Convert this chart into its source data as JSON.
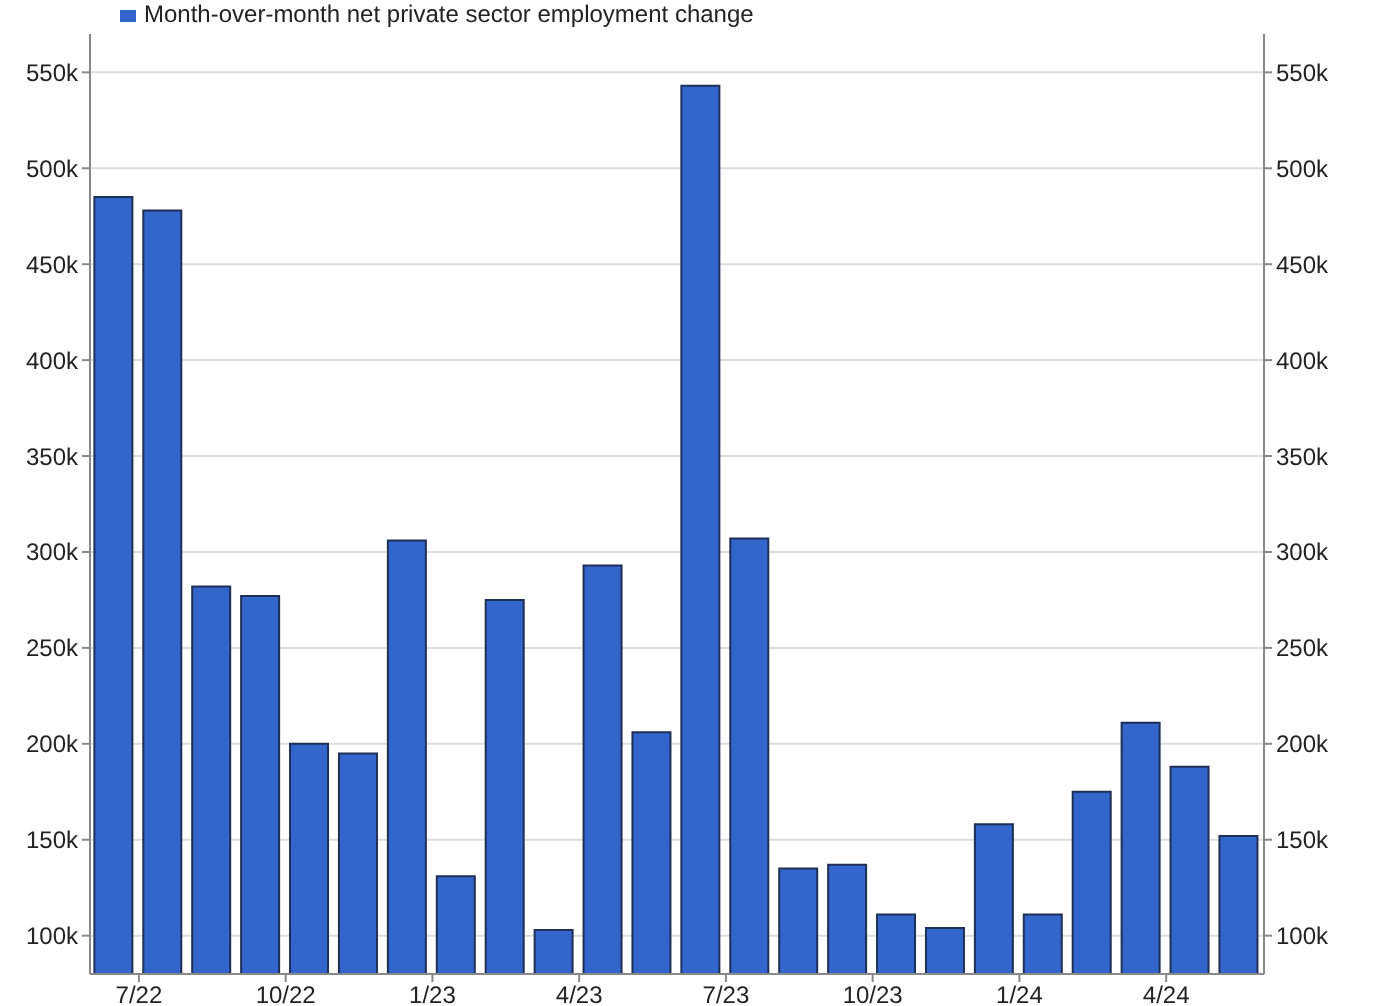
{
  "chart_data": {
    "type": "bar",
    "x": [
      "2022-06-15",
      "2022-07-15",
      "2022-08-15",
      "2022-09-15",
      "2022-10-15",
      "2022-11-15",
      "2022-12-15",
      "2023-01-15",
      "2023-02-15",
      "2023-03-15",
      "2023-04-15",
      "2023-05-15",
      "2023-06-15",
      "2023-07-15",
      "2023-08-15",
      "2023-09-15",
      "2023-10-15",
      "2023-11-15",
      "2023-12-15",
      "2024-01-15",
      "2024-02-15",
      "2024-03-15",
      "2024-04-15",
      "2024-05-15"
    ],
    "series": [
      {
        "name": "Month-over-month net private sector employment change",
        "color": "#3366cc",
        "values": [
          485000,
          478000,
          282000,
          277000,
          200000,
          195000,
          306000,
          131000,
          275000,
          103000,
          293000,
          206000,
          543000,
          307000,
          135000,
          137000,
          111000,
          104000,
          158000,
          111000,
          175000,
          211000,
          188000,
          152000
        ]
      }
    ],
    "xlim": [
      "2022-06",
      "2024-06"
    ],
    "xticks": [
      {
        "value": "2022-07",
        "label": "7/22"
      },
      {
        "value": "2022-10",
        "label": "10/22"
      },
      {
        "value": "2023-01",
        "label": "1/23"
      },
      {
        "value": "2023-04",
        "label": "4/23"
      },
      {
        "value": "2023-07",
        "label": "7/23"
      },
      {
        "value": "2023-10",
        "label": "10/23"
      },
      {
        "value": "2024-01",
        "label": "1/24"
      },
      {
        "value": "2024-04",
        "label": "4/24"
      }
    ],
    "ylim": [
      80000,
      570000
    ],
    "yticks": [
      {
        "value": 100000,
        "label": "100k"
      },
      {
        "value": 150000,
        "label": "150k"
      },
      {
        "value": 200000,
        "label": "200k"
      },
      {
        "value": 250000,
        "label": "250k"
      },
      {
        "value": 300000,
        "label": "300k"
      },
      {
        "value": 350000,
        "label": "350k"
      },
      {
        "value": 400000,
        "label": "400k"
      },
      {
        "value": 450000,
        "label": "450k"
      },
      {
        "value": 500000,
        "label": "500k"
      },
      {
        "value": 550000,
        "label": "550k"
      }
    ],
    "y2lim": [
      80000,
      570000
    ],
    "y2ticks": [
      {
        "value": 100000,
        "label": "100k"
      },
      {
        "value": 150000,
        "label": "150k"
      },
      {
        "value": 200000,
        "label": "200k"
      },
      {
        "value": 250000,
        "label": "250k"
      },
      {
        "value": 300000,
        "label": "300k"
      },
      {
        "value": 350000,
        "label": "350k"
      },
      {
        "value": 400000,
        "label": "400k"
      },
      {
        "value": 450000,
        "label": "450k"
      },
      {
        "value": 500000,
        "label": "500k"
      },
      {
        "value": 550000,
        "label": "550k"
      }
    ],
    "grid": "y",
    "legend": "top left"
  }
}
